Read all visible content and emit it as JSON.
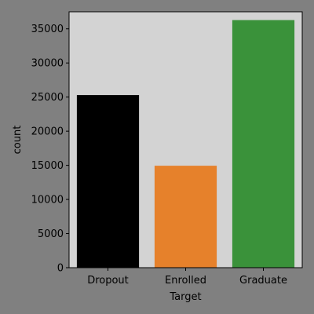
{
  "chart_data": {
    "type": "bar",
    "title": "",
    "xlabel": "Target",
    "ylabel": "count",
    "categories": [
      "Dropout",
      "Enrolled",
      "Graduate"
    ],
    "values": [
      25296,
      14940,
      36282
    ],
    "colors": [
      "#000000",
      "#e6812b",
      "#3a923a"
    ],
    "ylim": [
      0,
      37500
    ],
    "yticks": [
      0,
      5000,
      10000,
      15000,
      20000,
      25000,
      30000,
      35000
    ],
    "grid": false,
    "background": "#808080",
    "plot_background": "#d3d3d3"
  }
}
